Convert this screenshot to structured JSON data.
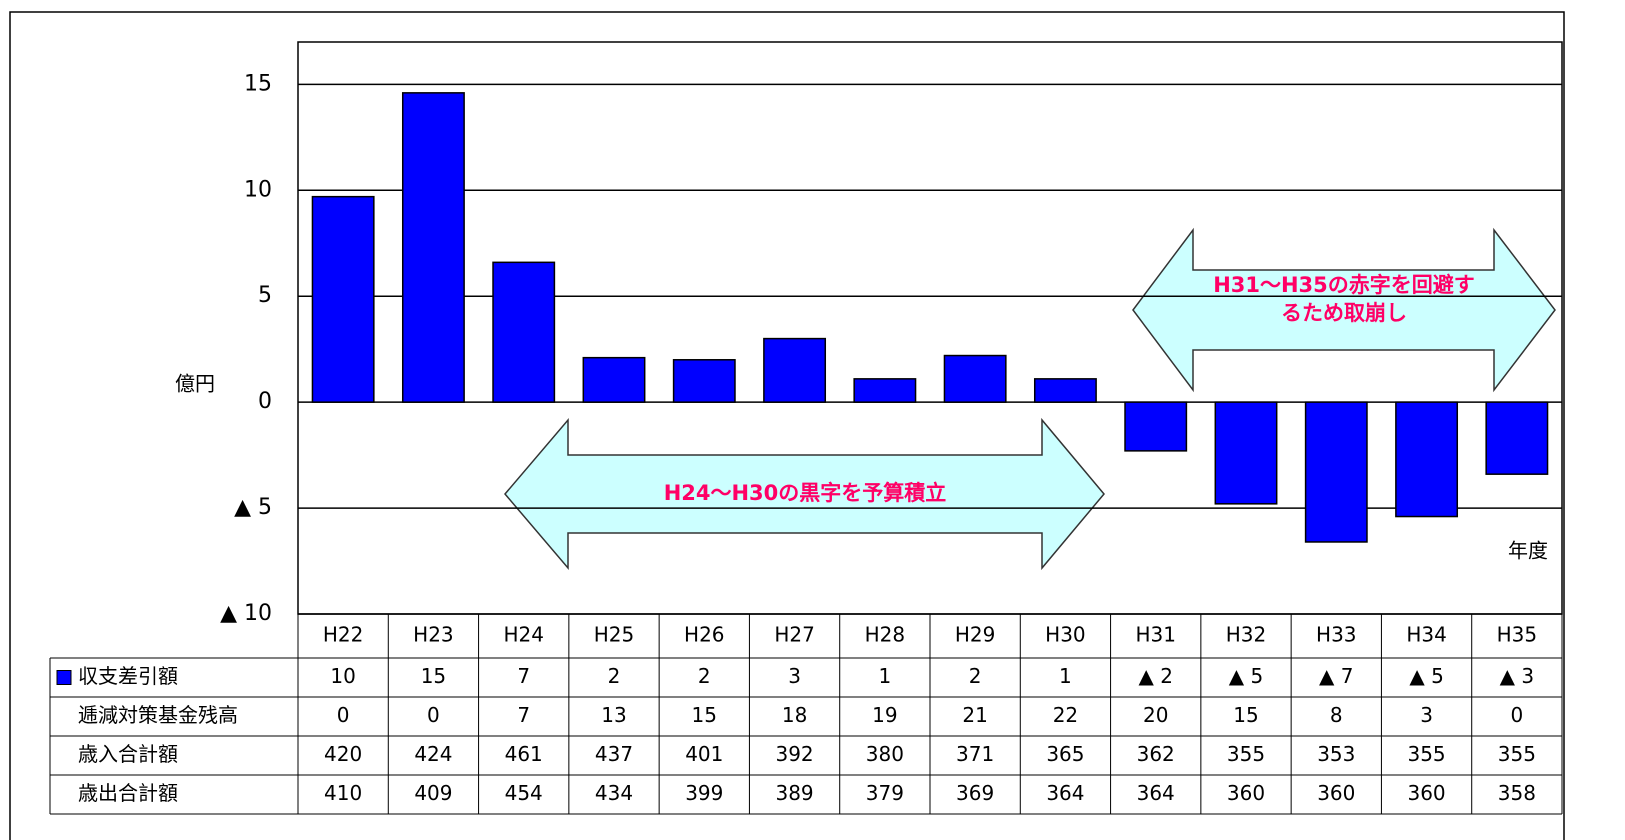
{
  "chart_data": {
    "type": "bar",
    "y_label": "億円",
    "x_label": "年度",
    "categories": [
      "H22",
      "H23",
      "H24",
      "H25",
      "H26",
      "H27",
      "H28",
      "H29",
      "H30",
      "H31",
      "H32",
      "H33",
      "H34",
      "H35"
    ],
    "series": [
      {
        "name": "収支差引額",
        "color": "#0000ff",
        "values": [
          9.7,
          14.6,
          6.6,
          2.1,
          2.0,
          3.0,
          1.1,
          2.2,
          1.1,
          -2.3,
          -4.8,
          -6.6,
          -5.4,
          -3.4
        ],
        "value_labels": [
          "10",
          "15",
          "7",
          "2",
          "2",
          "3",
          "1",
          "2",
          "1",
          "▲ 2",
          "▲ 5",
          "▲ 7",
          "▲ 5",
          "▲ 3"
        ]
      }
    ],
    "table": [
      {
        "name": "逓減対策基金残高",
        "values": [
          0,
          0,
          7,
          13,
          15,
          18,
          19,
          21,
          22,
          20,
          15,
          8,
          3,
          0
        ]
      },
      {
        "name": "歳入合計額",
        "values": [
          420,
          424,
          461,
          437,
          401,
          392,
          380,
          371,
          365,
          362,
          355,
          353,
          355,
          355
        ]
      },
      {
        "name": "歳出合計額",
        "values": [
          410,
          409,
          454,
          434,
          399,
          389,
          379,
          369,
          364,
          364,
          360,
          360,
          360,
          358
        ]
      }
    ],
    "ylim": [
      -10,
      17
    ],
    "yticks": [
      {
        "value": -10,
        "label": "▲ 10"
      },
      {
        "value": -5,
        "label": "▲ 5"
      },
      0,
      5,
      10,
      15
    ],
    "grid": true,
    "annotations": [
      {
        "lines": [
          "H24～H30の黒字を予算積立"
        ]
      },
      {
        "lines": [
          "H31～H35の赤字を回避す",
          "るため取崩し"
        ]
      }
    ]
  }
}
